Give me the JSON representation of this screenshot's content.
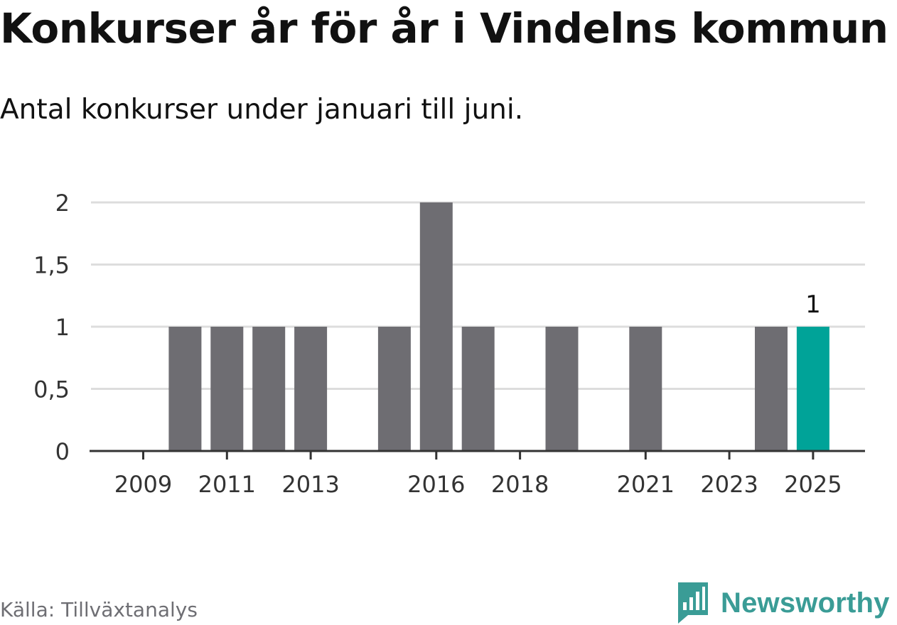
{
  "title": "Konkurser år för år i Vindelns kommun",
  "subtitle": "Antal konkurser under januari till juni.",
  "source": "Källa: Tillväxtanalys",
  "brand": {
    "name": "Newsworthy",
    "icon": "newsworthy-logo-icon",
    "color": "#3a9c96"
  },
  "colors": {
    "bar": "#6e6d72",
    "highlight": "#00a398",
    "grid": "#dddddd",
    "axis": "#333333"
  },
  "chart_data": {
    "type": "bar",
    "categories": [
      "2009",
      "2010",
      "2011",
      "2012",
      "2013",
      "2014",
      "2015",
      "2016",
      "2017",
      "2018",
      "2019",
      "2020",
      "2021",
      "2022",
      "2023",
      "2024",
      "2025"
    ],
    "values": [
      0,
      1,
      1,
      1,
      1,
      0,
      1,
      2,
      1,
      0,
      1,
      0,
      1,
      0,
      0,
      1,
      1
    ],
    "x_tick_labels": [
      "2009",
      "2011",
      "2013",
      "2016",
      "2018",
      "2021",
      "2023",
      "2025"
    ],
    "y_ticks": [
      0,
      0.5,
      1,
      1.5,
      2
    ],
    "y_tick_labels": [
      "0",
      "0,5",
      "1",
      "1,5",
      "2"
    ],
    "ylim": [
      0,
      2
    ],
    "grid": true,
    "highlight_category": "2025",
    "data_labels": [
      {
        "category": "2025",
        "text": "1"
      }
    ],
    "xlabel": "",
    "ylabel": ""
  }
}
